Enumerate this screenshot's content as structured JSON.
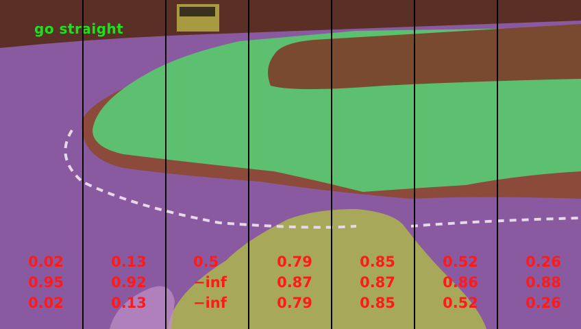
{
  "command": "go straight",
  "colors": {
    "road": "#8a5aa0",
    "sidewalk": "#5dc070",
    "curb": "#8c4a3a",
    "bed": "#7a4a30",
    "grass": "#5a3026",
    "path": "#a8a85a",
    "text_command": "#1fe01f",
    "text_scores": "#ff1a1a",
    "divider": "#000000"
  },
  "columns": [
    {
      "r1": "0.02",
      "r2": "0.95",
      "r3": "0.02"
    },
    {
      "r1": "0.13",
      "r2": "0.92",
      "r3": "0.13"
    },
    {
      "r1": "0.5",
      "r2": "−inf",
      "r3": "−inf"
    },
    {
      "r1": "0.79",
      "r2": "0.87",
      "r3": "0.79"
    },
    {
      "r1": "0.85",
      "r2": "0.87",
      "r3": "0.85"
    },
    {
      "r1": "0.52",
      "r2": "0.86",
      "r3": "0.52"
    },
    {
      "r1": "0.26",
      "r2": "0.88",
      "r3": "0.26"
    }
  ]
}
